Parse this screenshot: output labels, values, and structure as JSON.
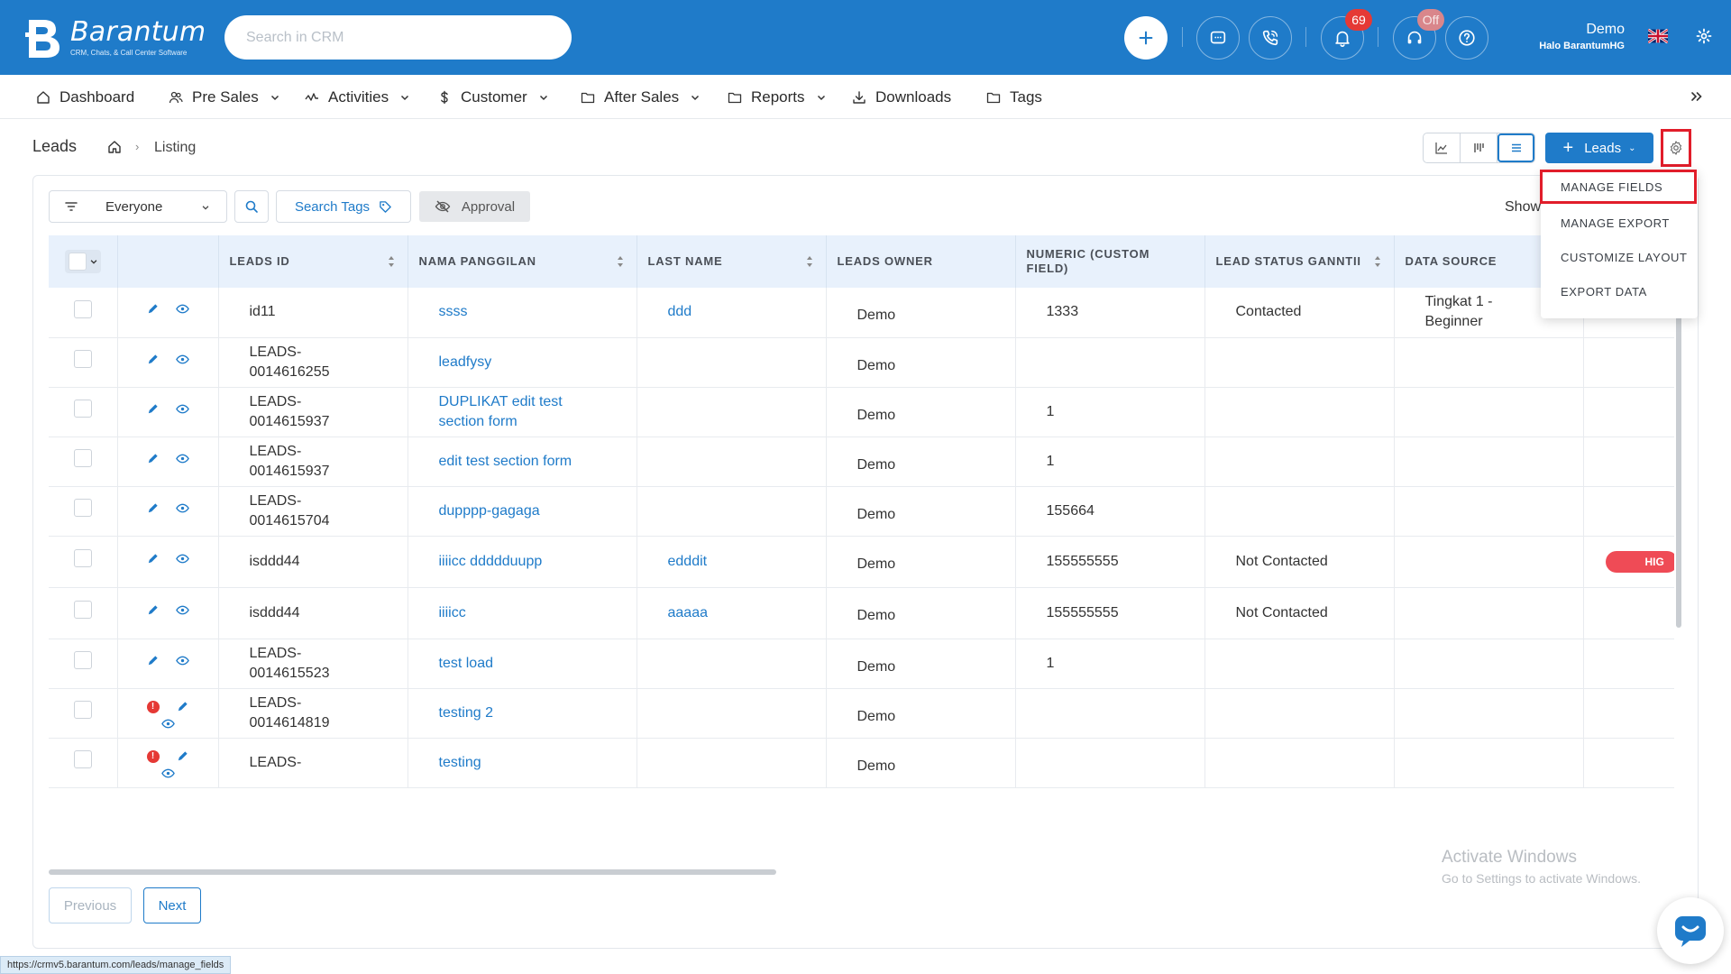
{
  "app": {
    "brand_name": "Barantum",
    "brand_tagline": "CRM, Chats, & Call Center Software",
    "search_placeholder": "Search in CRM"
  },
  "header": {
    "notifications_count": "69",
    "call_status": "Off",
    "user_name": "Demo",
    "user_company": "Halo BarantumHG",
    "accent_color": "#1f7bc9"
  },
  "nav": {
    "items": [
      {
        "label": "Dashboard",
        "icon": "home-icon"
      },
      {
        "label": "Pre Sales",
        "icon": "users-icon"
      },
      {
        "label": "Activities",
        "icon": "activity-icon"
      },
      {
        "label": "Customer",
        "icon": "dollar-icon"
      },
      {
        "label": "After Sales",
        "icon": "folder-icon"
      },
      {
        "label": "Reports",
        "icon": "folder-icon"
      },
      {
        "label": "Downloads",
        "icon": "download-icon"
      },
      {
        "label": "Tags",
        "icon": "folder-icon"
      }
    ]
  },
  "page": {
    "title": "Leads",
    "breadcrumb_current": "Listing",
    "add_button_label": "Leads"
  },
  "filters": {
    "owner_filter": "Everyone",
    "search_tags_label": "Search Tags",
    "approval_label": "Approval",
    "show_label": "Show"
  },
  "dropdown": {
    "items": [
      "MANAGE FIELDS",
      "MANAGE EXPORT",
      "CUSTOMIZE LAYOUT",
      "EXPORT DATA"
    ]
  },
  "table": {
    "columns": [
      "LEADS ID",
      "NAMA PANGGILAN",
      "LAST NAME",
      "LEADS OWNER",
      "NUMERIC (CUSTOM FIELD)",
      "LEAD STATUS GANNTII",
      "DATA SOURCE"
    ],
    "rows": [
      {
        "id": "id11",
        "nama": "ssss",
        "last": "ddd",
        "owner": "Demo",
        "numeric": "1333",
        "status": "Contacted",
        "source": "Tingkat 1 - Beginner",
        "extra": ""
      },
      {
        "id": "LEADS-0014616255",
        "nama": "leadfysy",
        "last": "",
        "owner": "Demo",
        "numeric": "",
        "status": "",
        "source": "",
        "extra": ""
      },
      {
        "id": "LEADS-0014615937",
        "nama": "DUPLIKAT edit test section form",
        "last": "",
        "owner": "Demo",
        "numeric": "1",
        "status": "",
        "source": "",
        "extra": ""
      },
      {
        "id": "LEADS-0014615937",
        "nama": "edit test section form",
        "last": "",
        "owner": "Demo",
        "numeric": "1",
        "status": "",
        "source": "",
        "extra": ""
      },
      {
        "id": "LEADS-0014615704",
        "nama": "dupppp-gagaga",
        "last": "",
        "owner": "Demo",
        "numeric": "155664",
        "status": "",
        "source": "",
        "extra": ""
      },
      {
        "id": "isddd44",
        "nama": "iiiicc ddddduupp",
        "last": "edddit",
        "owner": "Demo",
        "numeric": "155555555",
        "status": "Not Contacted",
        "source": "",
        "extra": "HIG"
      },
      {
        "id": "isddd44",
        "nama": "iiiicc",
        "last": "aaaaa",
        "owner": "Demo",
        "numeric": "155555555",
        "status": "Not Contacted",
        "source": "",
        "extra": ""
      },
      {
        "id": "LEADS-0014615523",
        "nama": "test load",
        "last": "",
        "owner": "Demo",
        "numeric": "1",
        "status": "",
        "source": "",
        "extra": ""
      },
      {
        "id": "LEADS-0014614819",
        "nama": "testing 2",
        "last": "",
        "owner": "Demo",
        "numeric": "",
        "status": "",
        "source": "",
        "extra": ""
      },
      {
        "id": "LEADS-",
        "nama": "testing",
        "last": "",
        "owner": "Demo",
        "numeric": "",
        "status": "",
        "source": "",
        "extra": ""
      }
    ]
  },
  "pagination": {
    "prev_label": "Previous",
    "next_label": "Next"
  },
  "watermark": {
    "line1": "Activate Windows",
    "line2": "Go to Settings to activate Windows."
  },
  "status_bar_url": "https://crmv5.barantum.com/leads/manage_fields"
}
